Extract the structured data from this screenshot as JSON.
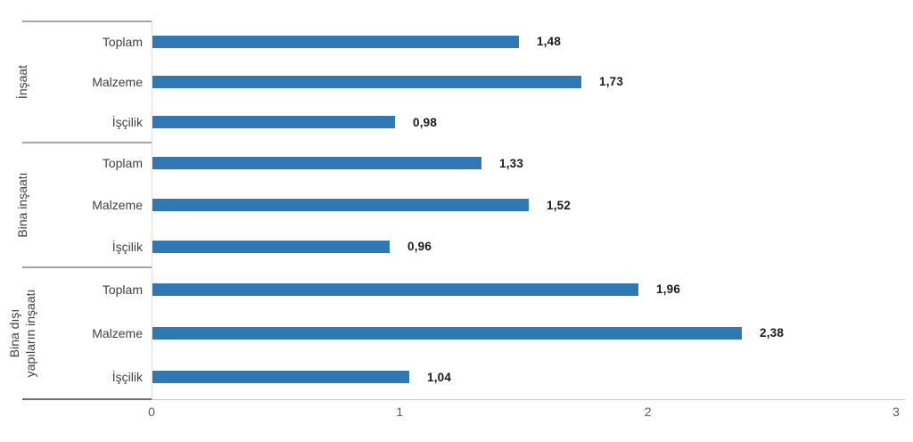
{
  "chart_data": {
    "type": "bar",
    "orientation": "horizontal",
    "title": "",
    "bar_color": "#2F78B4",
    "x_axis": {
      "min": 0,
      "max": 3,
      "ticks": [
        "0",
        "1",
        "2",
        "3"
      ]
    },
    "legend": null,
    "grid": false,
    "groups": [
      {
        "label": "İnşaat",
        "items": [
          {
            "category": "Toplam",
            "value": 1.48,
            "display": "1,48"
          },
          {
            "category": "Malzeme",
            "value": 1.73,
            "display": "1,73"
          },
          {
            "category": "İşçilik",
            "value": 0.98,
            "display": "0,98"
          }
        ]
      },
      {
        "label": "Bina inşaatı",
        "items": [
          {
            "category": "Toplam",
            "value": 1.33,
            "display": "1,33"
          },
          {
            "category": "Malzeme",
            "value": 1.52,
            "display": "1,52"
          },
          {
            "category": "İşçilik",
            "value": 0.96,
            "display": "0,96"
          }
        ]
      },
      {
        "label": "Bina dışı yapıların inşaatı",
        "label_lines": [
          "Bina dışı",
          "yapıların inşaatı"
        ],
        "items": [
          {
            "category": "Toplam",
            "value": 1.96,
            "display": "1,96"
          },
          {
            "category": "Malzeme",
            "value": 2.38,
            "display": "2,38"
          },
          {
            "category": "İşçilik",
            "value": 1.04,
            "display": "1,04"
          }
        ]
      }
    ]
  }
}
